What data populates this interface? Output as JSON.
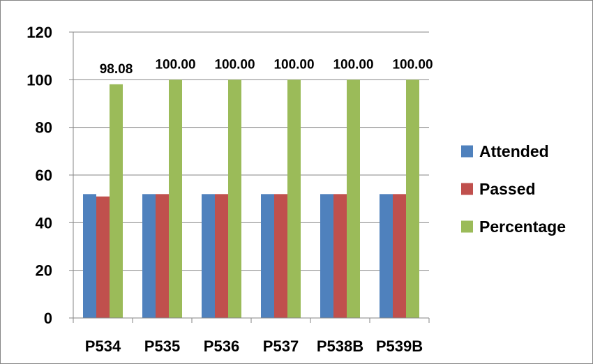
{
  "chart_data": {
    "type": "bar",
    "title": "",
    "xlabel": "",
    "ylabel": "",
    "categories": [
      "P534",
      "P535",
      "P536",
      "P537",
      "P538B",
      "P539B"
    ],
    "series": [
      {
        "name": "Attended",
        "color": "#4F81BD",
        "values": [
          52,
          52,
          52,
          52,
          52,
          52
        ]
      },
      {
        "name": "Passed",
        "color": "#C0504D",
        "values": [
          51,
          52,
          52,
          52,
          52,
          52
        ]
      },
      {
        "name": "Percentage",
        "color": "#9BBB59",
        "values": [
          98.08,
          100.0,
          100.0,
          100.0,
          100.0,
          100.0
        ]
      }
    ],
    "data_labels": {
      "series": "Percentage",
      "labels": [
        "98.08",
        "100.00",
        "100.00",
        "100.00",
        "100.00",
        "100.00"
      ]
    },
    "ylim": [
      0,
      120
    ],
    "yticks": [
      0,
      20,
      40,
      60,
      80,
      100,
      120
    ],
    "grid": true,
    "legend": "right"
  }
}
